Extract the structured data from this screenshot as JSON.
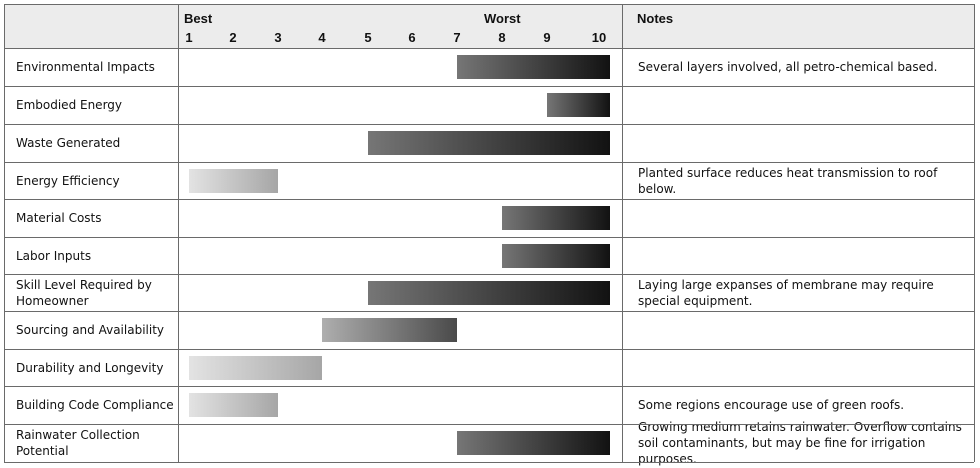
{
  "chart_data": {
    "type": "range-bar",
    "header": {
      "best_label": "Best",
      "worst_label": "Worst",
      "notes_label": "Notes"
    },
    "scale": {
      "ticks": [
        "1",
        "2",
        "3",
        "4",
        "5",
        "6",
        "7",
        "8",
        "9",
        "10"
      ],
      "min": 1,
      "max": 10
    },
    "rows": [
      {
        "label": "Environmental Impacts",
        "start": 7,
        "end": 10,
        "shade": "dark",
        "note": "Several layers involved, all petro-chemical based."
      },
      {
        "label": "Embodied Energy",
        "start": 9,
        "end": 10,
        "shade": "dark",
        "note": ""
      },
      {
        "label": "Waste Generated",
        "start": 5,
        "end": 10,
        "shade": "dark",
        "note": ""
      },
      {
        "label": "Energy Efficiency",
        "start": 1,
        "end": 3,
        "shade": "light",
        "note": "Planted surface reduces heat transmission to roof below."
      },
      {
        "label": "Material Costs",
        "start": 8,
        "end": 10,
        "shade": "dark",
        "note": ""
      },
      {
        "label": "Labor Inputs",
        "start": 8,
        "end": 10,
        "shade": "dark",
        "note": ""
      },
      {
        "label": "Skill Level Required by Homeowner",
        "start": 5,
        "end": 10,
        "shade": "dark",
        "note": "Laying large expanses of membrane may require special equipment."
      },
      {
        "label": "Sourcing and Availability",
        "start": 4,
        "end": 7,
        "shade": "med",
        "note": ""
      },
      {
        "label": "Durability and Longevity",
        "start": 1,
        "end": 4,
        "shade": "light",
        "note": ""
      },
      {
        "label": "Building Code Compliance",
        "start": 1,
        "end": 3,
        "shade": "light",
        "note": "Some regions encourage use of green roofs."
      },
      {
        "label": "Rainwater Collection Potential",
        "start": 7,
        "end": 10,
        "shade": "dark",
        "note": "Growing medium retains rainwater. Overflow contains soil contaminants, but may be fine for irrigation purposes."
      }
    ]
  }
}
